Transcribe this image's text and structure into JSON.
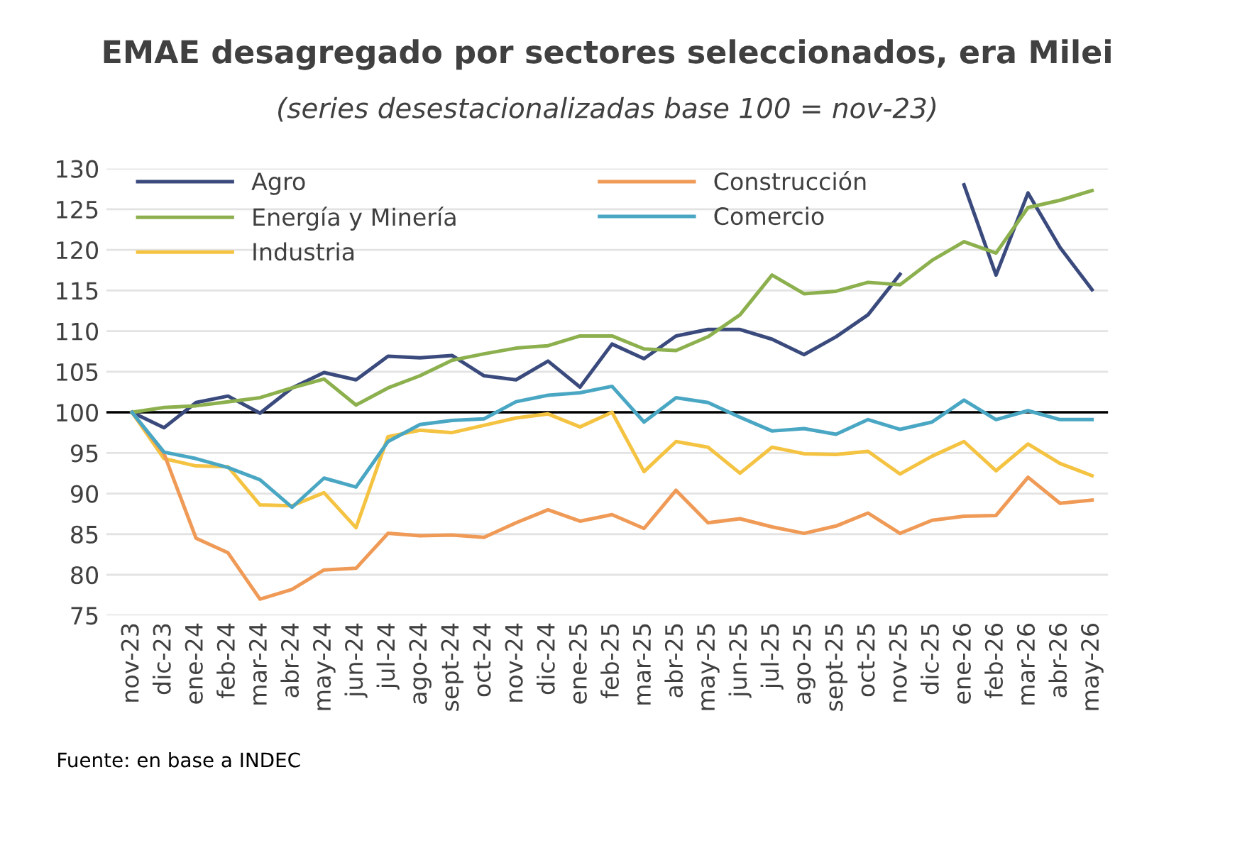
{
  "chart_data": {
    "type": "line",
    "title": "EMAE desagregado por sectores seleccionados, era Milei",
    "subtitle": "(series desestacionalizadas base 100 = nov-23)",
    "categories": [
      "nov-23",
      "dic-23",
      "ene-24",
      "feb-24",
      "mar-24",
      "abr-24",
      "may-24",
      "jun-24",
      "jul-24",
      "ago-24",
      "sept-24",
      "oct-24",
      "nov-24",
      "dic-24",
      "ene-25",
      "feb-25",
      "mar-25",
      "abr-25",
      "may-25",
      "jun-25",
      "jul-25",
      "ago-25",
      "sept-25",
      "oct-25",
      "nov-25",
      "dic-25",
      "ene-26",
      "feb-26",
      "mar-26",
      "abr-26",
      "may-26"
    ],
    "series": [
      {
        "name": "Agro",
        "color": "#3a4a7d",
        "values": [
          100,
          98.1,
          101.2,
          102.0,
          99.9,
          103.0,
          104.9,
          104.0,
          106.9,
          106.7,
          107.0,
          104.5,
          104.0,
          106.3,
          103.1,
          108.4,
          106.6,
          109.4,
          110.2,
          110.2,
          109.0,
          107.1,
          109.3,
          112.0,
          117.0,
          null,
          128,
          116.9,
          127.0,
          120.3,
          115.1
        ]
      },
      {
        "name": "Energía y Minería",
        "color": "#8db04e",
        "values": [
          100,
          100.6,
          100.8,
          101.3,
          101.8,
          103.0,
          104.1,
          100.9,
          103.0,
          104.5,
          106.4,
          107.2,
          107.9,
          108.2,
          109.4,
          109.4,
          107.8,
          107.6,
          109.3,
          112.0,
          116.9,
          114.6,
          114.9,
          116.0,
          115.7,
          118.7,
          121.0,
          119.6,
          125.2,
          126.1,
          127.3
        ]
      },
      {
        "name": "Industria",
        "color": "#f5c342",
        "values": [
          100,
          94.3,
          93.4,
          93.3,
          88.6,
          88.5,
          90.1,
          85.8,
          97.0,
          97.8,
          97.5,
          98.4,
          99.3,
          99.8,
          98.2,
          100.0,
          92.7,
          96.4,
          95.7,
          92.5,
          95.7,
          94.9,
          94.8,
          95.2,
          92.4,
          94.6,
          96.4,
          92.8,
          96.1,
          93.7,
          92.2
        ]
      },
      {
        "name": "Construcción",
        "color": "#ef9a56",
        "values": [
          100,
          94.9,
          84.5,
          82.7,
          77.0,
          78.2,
          80.6,
          80.8,
          85.1,
          84.8,
          84.9,
          84.6,
          86.4,
          88.0,
          86.6,
          87.4,
          85.7,
          90.4,
          86.4,
          86.9,
          85.9,
          85.1,
          86.0,
          87.6,
          85.1,
          86.7,
          87.2,
          87.3,
          92.0,
          88.8,
          89.2
        ]
      },
      {
        "name": "Comercio",
        "color": "#4aa7c4",
        "values": [
          100,
          95.1,
          94.3,
          93.2,
          91.7,
          88.3,
          91.9,
          90.8,
          96.4,
          98.5,
          99.0,
          99.2,
          101.3,
          102.1,
          102.4,
          103.2,
          98.8,
          101.8,
          101.2,
          99.4,
          97.7,
          98.0,
          97.3,
          99.1,
          97.9,
          98.8,
          101.5,
          99.1,
          100.2,
          99.1,
          99.1
        ]
      }
    ],
    "ylim": [
      75,
      130
    ],
    "yticks": [
      75,
      80,
      85,
      90,
      95,
      100,
      105,
      110,
      115,
      120,
      125,
      130
    ],
    "grid": "y",
    "legend": "top left",
    "marker": "none",
    "line_style": "solid",
    "ref_lines": [
      {
        "axis": "y",
        "value": 100,
        "color": "#000000"
      }
    ],
    "annotations": [
      "Fuente: en base a INDEC"
    ]
  }
}
